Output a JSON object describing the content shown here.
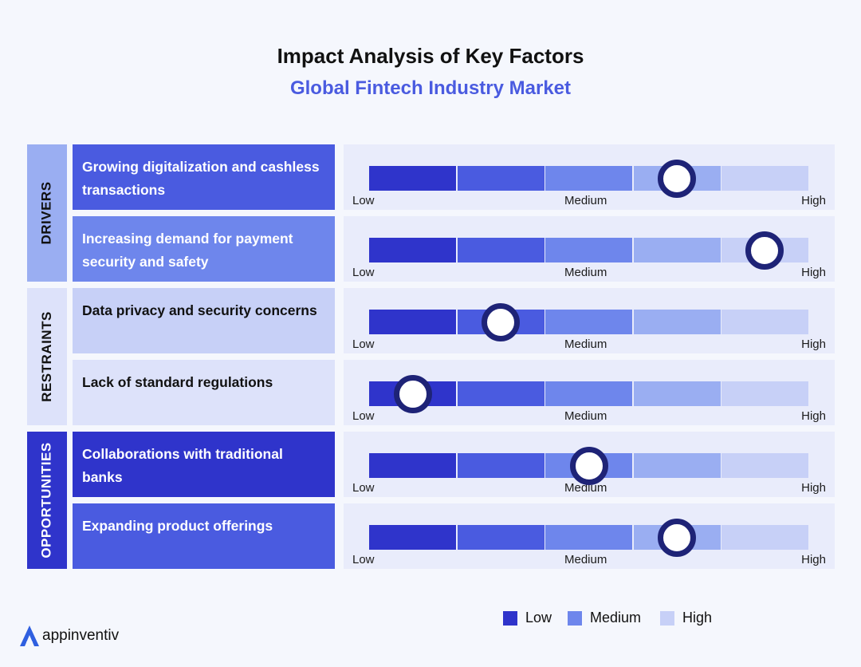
{
  "chart_data": {
    "type": "impact-scale",
    "title": "Impact Analysis of Key Factors",
    "subtitle": "Global Fintech Industry Market",
    "scale_labels": [
      "Low",
      "Medium",
      "High"
    ],
    "scale_range": [
      0,
      5
    ],
    "groups": [
      {
        "name": "DRIVERS",
        "factors": [
          {
            "label": "Growing digitalization and cashless transactions",
            "impact": 3.5
          },
          {
            "label": "Increasing demand for payment security and safety",
            "impact": 4.5
          }
        ]
      },
      {
        "name": "RESTRAINTS",
        "factors": [
          {
            "label": "Data privacy and security concerns",
            "impact": 1.5
          },
          {
            "label": "Lack of standard regulations",
            "impact": 0.5
          }
        ]
      },
      {
        "name": "OPPORTUNITIES",
        "factors": [
          {
            "label": "Collaborations with traditional banks",
            "impact": 2.5
          },
          {
            "label": "Expanding product offerings",
            "impact": 3.5
          }
        ]
      }
    ],
    "legend": [
      {
        "label": "Low",
        "color": "#2f34cb"
      },
      {
        "label": "Medium",
        "color": "#6e86ec"
      },
      {
        "label": "High",
        "color": "#c7d0f7"
      }
    ]
  },
  "colors": {
    "segments": [
      "#2f34cb",
      "#4a5be0",
      "#6e86ec",
      "#9aaef2",
      "#c7d0f7"
    ],
    "groups": [
      "#9aaef2",
      "#dde2fa",
      "#2f34cb"
    ],
    "group_text": [
      "#111111",
      "#111111",
      "#ffffff"
    ],
    "factors": [
      "#4a5be0",
      "#6e86ec",
      "#c7d0f7",
      "#dde2fa",
      "#2f34cb",
      "#4a5be0"
    ],
    "factor_text": [
      "#ffffff",
      "#ffffff",
      "#111111",
      "#111111",
      "#ffffff",
      "#ffffff"
    ],
    "marker": "#1e2377",
    "brand": "#2f5fe0"
  },
  "brand": {
    "name": "appinventiv",
    "icon": "appinventiv-logo-icon"
  }
}
